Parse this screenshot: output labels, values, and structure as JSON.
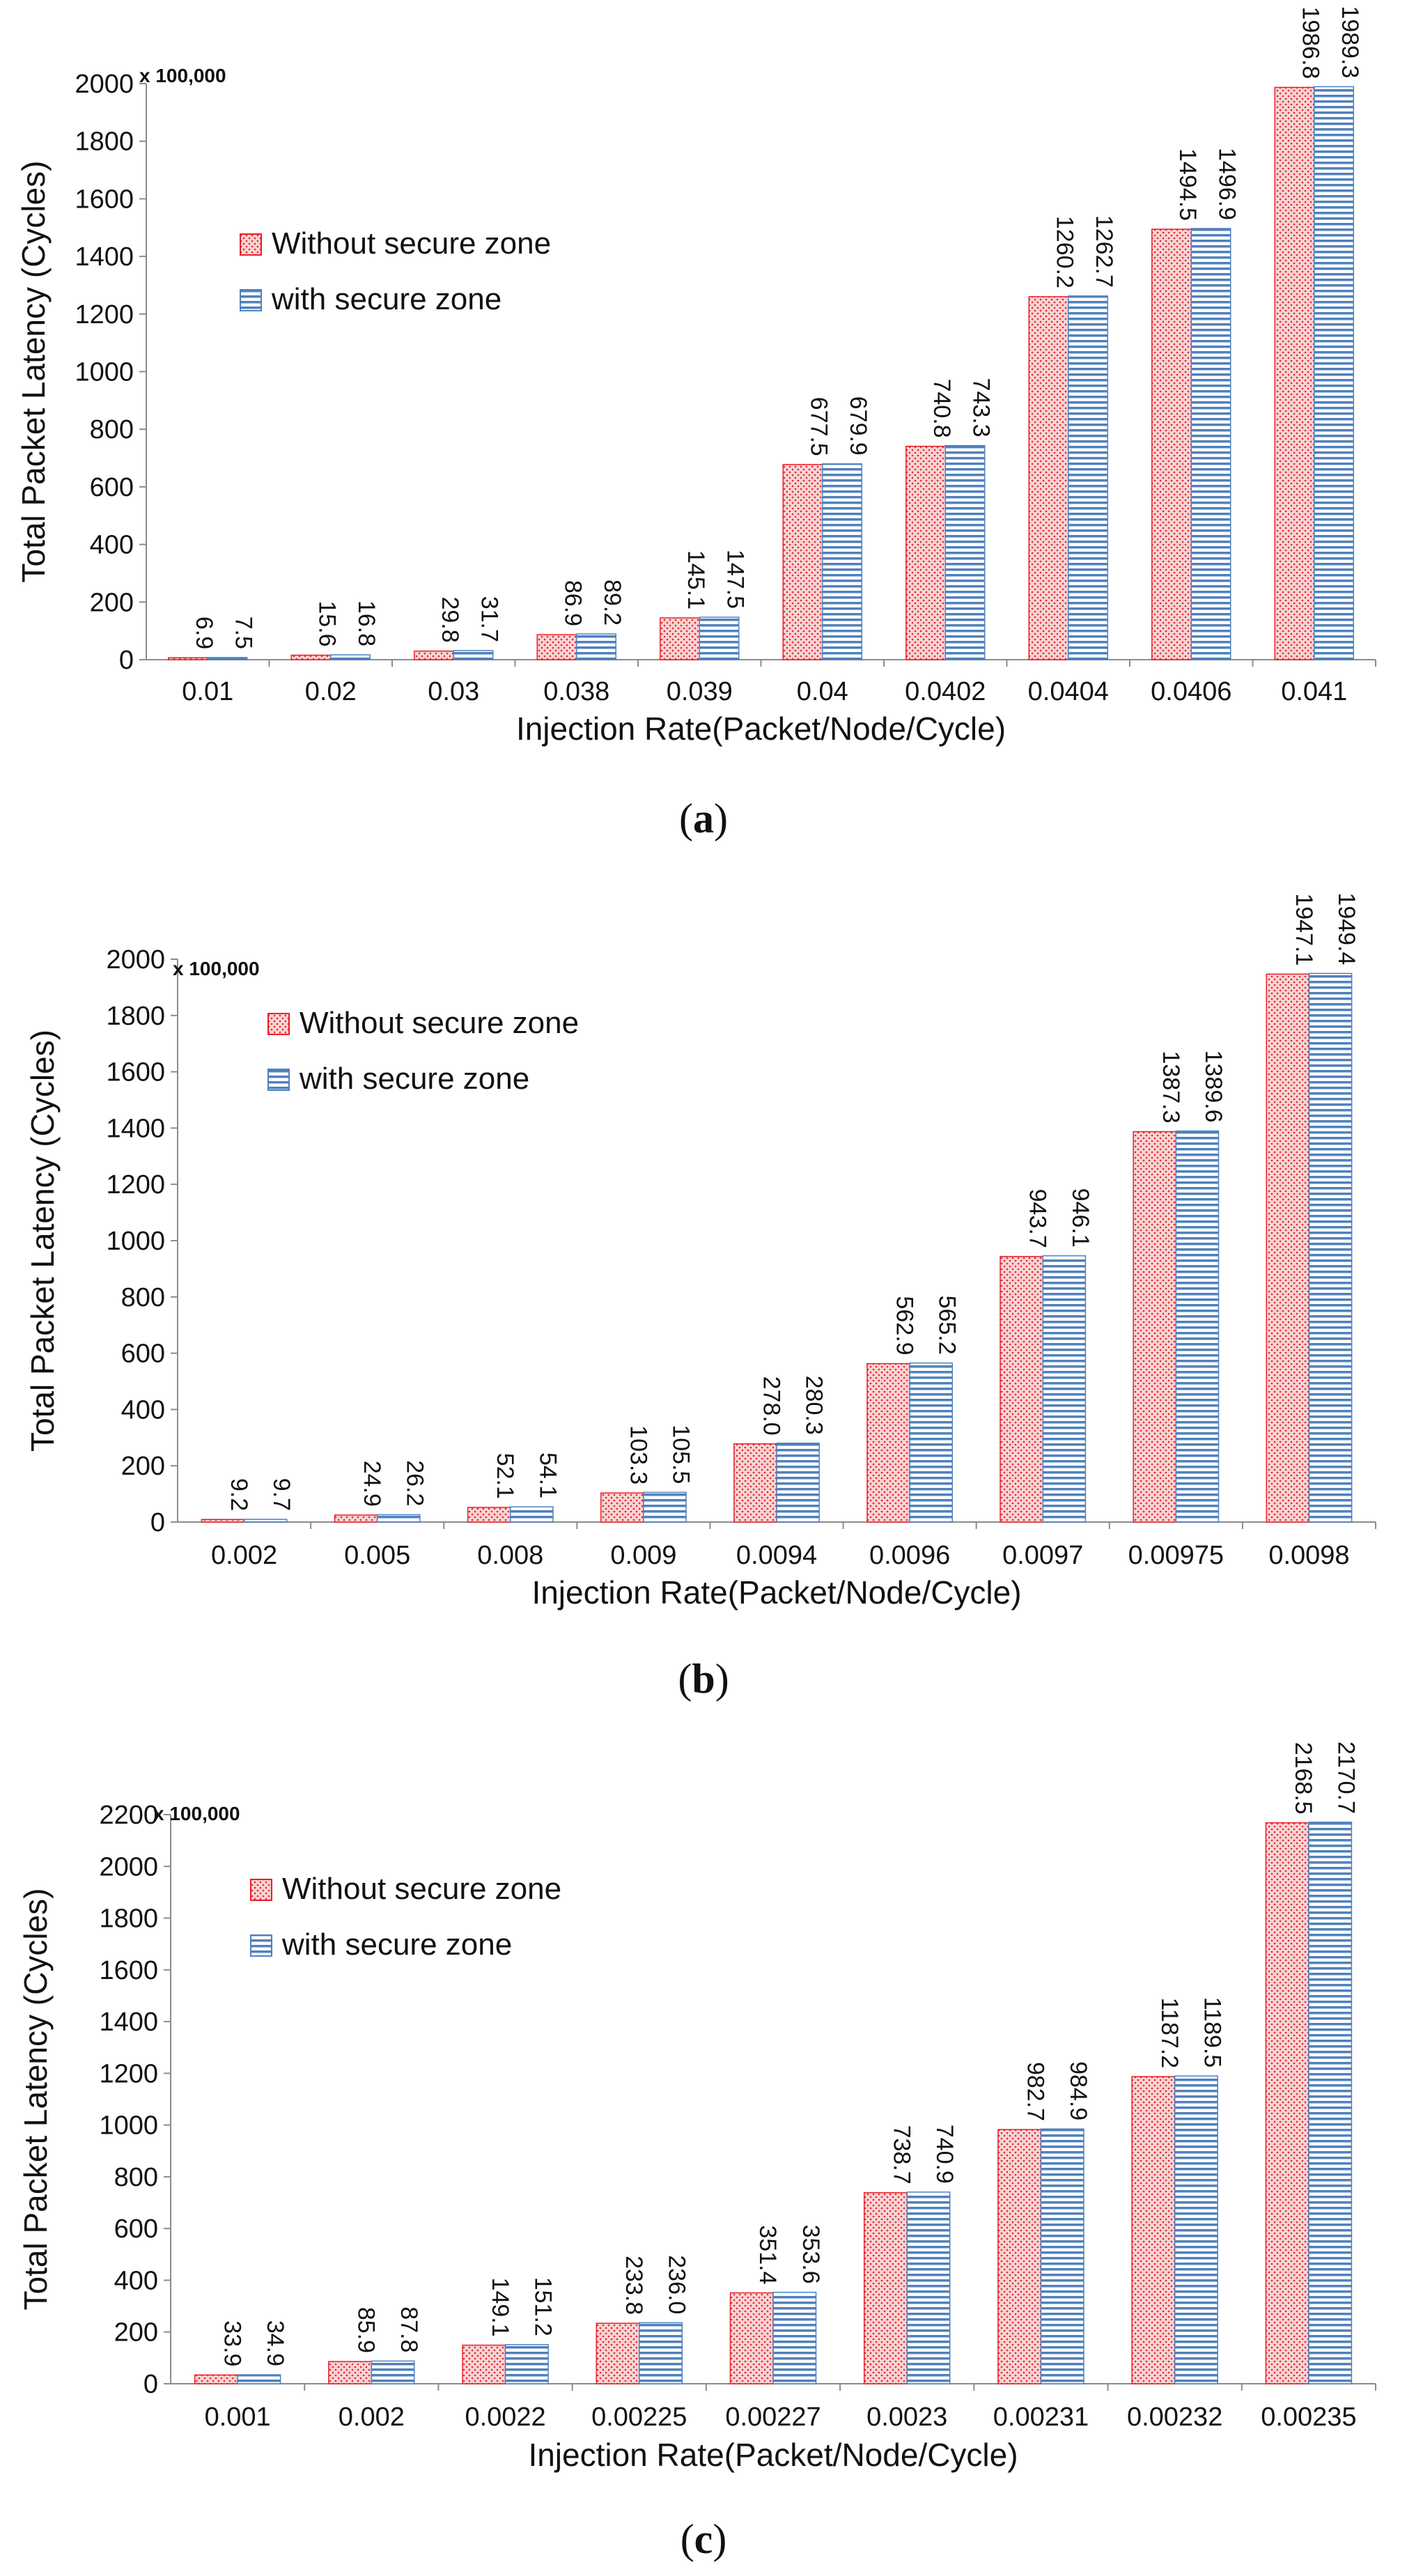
{
  "colors": {
    "without_fill": "#f7d4d4",
    "without_dot": "#e8202a",
    "without_stroke": "#e8202a",
    "with_fill": "#ffffff",
    "with_line": "#4f81bd",
    "with_stroke": "#4f81bd"
  },
  "chart_data": [
    {
      "type": "bar",
      "caption": "a",
      "multiplier": "x 100,000",
      "xlabel": "Injection Rate(Packet/Node/Cycle)",
      "ylabel": "Total Packet Latency (Cycles)",
      "ylim": [
        0,
        2000
      ],
      "yticks": [
        0,
        200,
        400,
        600,
        800,
        1000,
        1200,
        1400,
        1600,
        1800,
        2000
      ],
      "legend": "top-left",
      "grid": false,
      "categories": [
        "0.01",
        "0.02",
        "0.03",
        "0.038",
        "0.039",
        "0.04",
        "0.0402",
        "0.0404",
        "0.0406",
        "0.041"
      ],
      "series": [
        {
          "name": "Without secure zone",
          "values": [
            6.9,
            15.6,
            29.8,
            86.9,
            145.1,
            677.5,
            740.8,
            1260.2,
            1494.5,
            1986.8
          ],
          "labels": [
            "6.9",
            "15.6",
            "29.8",
            "86.9",
            "145.1",
            "677.5",
            "740.8",
            "1260.2",
            "1494.5",
            "1986.8"
          ]
        },
        {
          "name": "with secure zone",
          "values": [
            7.5,
            16.8,
            31.7,
            89.2,
            147.5,
            679.9,
            743.3,
            1262.7,
            1496.9,
            1989.3
          ],
          "labels": [
            "7.5",
            "16.8",
            "31.7",
            "89.2",
            "147.5",
            "679.9",
            "743.3",
            "1262.7",
            "1496.9",
            "1989.3"
          ]
        }
      ]
    },
    {
      "type": "bar",
      "caption": "b",
      "multiplier": "x 100,000",
      "xlabel": "Injection Rate(Packet/Node/Cycle)",
      "ylabel": "Total Packet Latency (Cycles)",
      "ylim": [
        0,
        2000
      ],
      "yticks": [
        0,
        200,
        400,
        600,
        800,
        1000,
        1200,
        1400,
        1600,
        1800,
        2000
      ],
      "legend": "top-left",
      "grid": false,
      "categories": [
        "0.002",
        "0.005",
        "0.008",
        "0.009",
        "0.0094",
        "0.0096",
        "0.0097",
        "0.00975",
        "0.0098"
      ],
      "series": [
        {
          "name": "Without secure zone",
          "values": [
            9.2,
            24.9,
            52.1,
            103.3,
            278.0,
            562.9,
            943.7,
            1387.3,
            1947.1
          ],
          "labels": [
            "9.2",
            "24.9",
            "52.1",
            "103.3",
            "278.0",
            "562.9",
            "943.7",
            "1387.3",
            "1947.1"
          ]
        },
        {
          "name": "with secure zone",
          "values": [
            9.7,
            26.2,
            54.1,
            105.5,
            280.3,
            565.2,
            946.1,
            1389.6,
            1949.4
          ],
          "labels": [
            "9.7",
            "26.2",
            "54.1",
            "105.5",
            "280.3",
            "565.2",
            "946.1",
            "1389.6",
            "1949.4"
          ]
        }
      ]
    },
    {
      "type": "bar",
      "caption": "c",
      "multiplier": "x 100,000",
      "xlabel": "Injection Rate(Packet/Node/Cycle)",
      "ylabel": "Total Packet Latency (Cycles)",
      "ylim": [
        0,
        2200
      ],
      "yticks": [
        0,
        200,
        400,
        600,
        800,
        1000,
        1200,
        1400,
        1600,
        1800,
        2000,
        2200
      ],
      "legend": "top-left",
      "grid": false,
      "categories": [
        "0.001",
        "0.002",
        "0.0022",
        "0.00225",
        "0.00227",
        "0.0023",
        "0.00231",
        "0.00232",
        "0.00235"
      ],
      "series": [
        {
          "name": "Without secure zone",
          "values": [
            33.9,
            85.9,
            149.1,
            233.8,
            351.4,
            738.7,
            982.7,
            1187.2,
            2168.5
          ],
          "labels": [
            "33.9",
            "85.9",
            "149.1",
            "233.8",
            "351.4",
            "738.7",
            "982.7",
            "1187.2",
            "2168.5"
          ]
        },
        {
          "name": "with secure zone",
          "values": [
            34.9,
            87.8,
            151.2,
            236.0,
            353.6,
            740.9,
            984.9,
            1189.5,
            2170.7
          ],
          "labels": [
            "34.9",
            "87.8",
            "151.2",
            "236.0",
            "353.6",
            "740.9",
            "984.9",
            "1189.5",
            "2170.7"
          ]
        }
      ]
    }
  ]
}
